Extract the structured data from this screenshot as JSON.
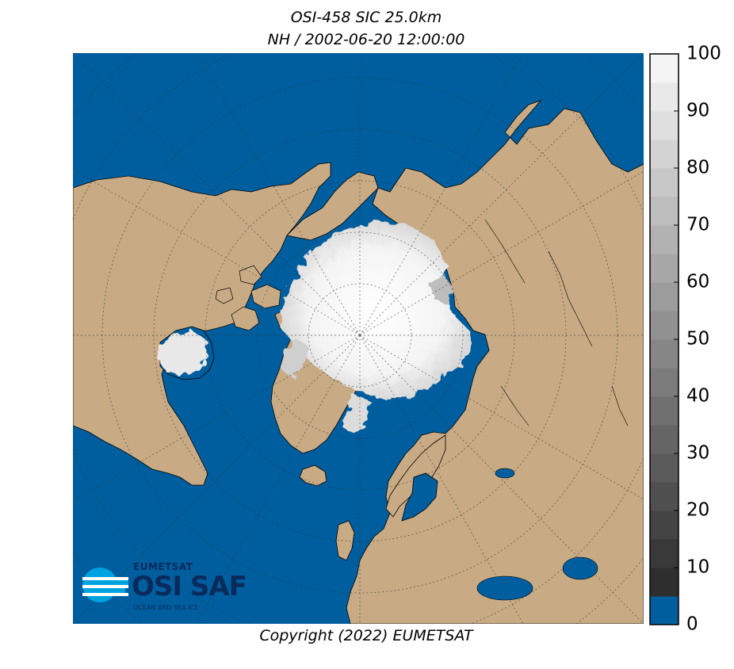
{
  "title": {
    "line1": "OSI-458 SIC 25.0km",
    "line2": "NH / 2002-06-20 12:00:00"
  },
  "map": {
    "projection": "north polar stereographic",
    "hemisphere": "NH",
    "colors": {
      "ocean": "#005e9e",
      "land": "#c8aa84",
      "coastline": "#000000",
      "graticule": "#333333"
    }
  },
  "colorbar": {
    "min": 0,
    "max": 100,
    "step": 5,
    "open_water_color": "#005e9e",
    "ticks": [
      "0",
      "10",
      "20",
      "30",
      "40",
      "50",
      "60",
      "70",
      "80",
      "90",
      "100"
    ]
  },
  "logo": {
    "org": "EUMETSAT",
    "product": "OSI SAF",
    "tagline": "OCEAN AND SEA ICE",
    "accent_color": "#00a3e0",
    "text_color": "#0a2a5c"
  },
  "copyright": "Copyright (2022)  EUMETSAT"
}
